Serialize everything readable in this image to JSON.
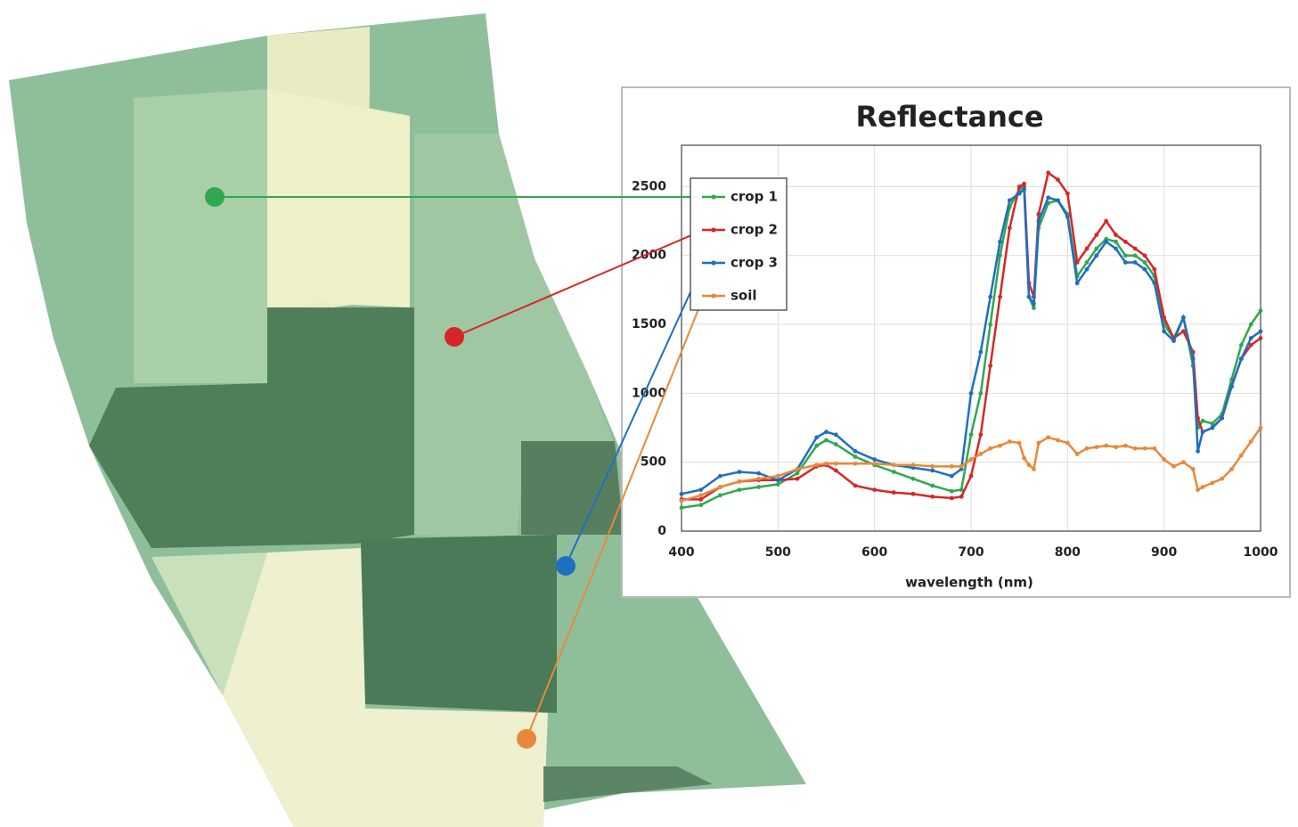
{
  "chart_data": {
    "type": "line",
    "title": "Reflectance",
    "x_label": "wavelength (nm)",
    "x": [
      400,
      420,
      440,
      460,
      480,
      500,
      520,
      540,
      550,
      560,
      580,
      600,
      620,
      640,
      660,
      680,
      690,
      700,
      710,
      720,
      730,
      740,
      750,
      755,
      760,
      765,
      770,
      780,
      790,
      800,
      810,
      820,
      830,
      840,
      850,
      860,
      870,
      880,
      890,
      900,
      910,
      920,
      930,
      935,
      940,
      950,
      960,
      970,
      980,
      990,
      1000
    ],
    "series": [
      {
        "name": "crop 1",
        "color": "#2fa84f",
        "values": [
          170,
          190,
          260,
          300,
          320,
          340,
          420,
          620,
          660,
          630,
          540,
          480,
          430,
          380,
          330,
          290,
          300,
          700,
          1000,
          1500,
          2000,
          2350,
          2480,
          2500,
          1700,
          1620,
          2200,
          2380,
          2400,
          2300,
          1850,
          1950,
          2050,
          2120,
          2100,
          2000,
          2000,
          1950,
          1850,
          1500,
          1400,
          1550,
          1200,
          750,
          800,
          780,
          850,
          1100,
          1350,
          1500,
          1600
        ]
      },
      {
        "name": "crop 2",
        "color": "#d62728",
        "values": [
          230,
          230,
          320,
          360,
          370,
          370,
          380,
          470,
          480,
          440,
          330,
          300,
          280,
          270,
          250,
          240,
          250,
          400,
          700,
          1200,
          1700,
          2200,
          2500,
          2520,
          1800,
          1700,
          2300,
          2600,
          2550,
          2450,
          1950,
          2050,
          2150,
          2250,
          2150,
          2100,
          2050,
          2000,
          1900,
          1550,
          1400,
          1450,
          1300,
          820,
          720,
          750,
          820,
          1050,
          1250,
          1350,
          1400
        ]
      },
      {
        "name": "crop 3",
        "color": "#1f6fbf",
        "values": [
          270,
          300,
          400,
          430,
          420,
          370,
          450,
          680,
          720,
          700,
          580,
          520,
          480,
          460,
          440,
          400,
          450,
          1000,
          1300,
          1700,
          2100,
          2400,
          2450,
          2480,
          1700,
          1650,
          2250,
          2420,
          2400,
          2280,
          1800,
          1900,
          2000,
          2100,
          2050,
          1950,
          1950,
          1900,
          1800,
          1450,
          1380,
          1550,
          1250,
          580,
          720,
          750,
          820,
          1050,
          1250,
          1400,
          1450
        ]
      },
      {
        "name": "soil",
        "color": "#e8893a",
        "values": [
          220,
          260,
          320,
          360,
          380,
          400,
          450,
          480,
          490,
          490,
          490,
          490,
          480,
          480,
          470,
          470,
          470,
          520,
          560,
          600,
          620,
          650,
          640,
          530,
          480,
          450,
          640,
          680,
          660,
          640,
          560,
          600,
          610,
          620,
          610,
          620,
          600,
          600,
          600,
          520,
          470,
          500,
          450,
          300,
          320,
          350,
          380,
          450,
          550,
          650,
          750
        ]
      }
    ],
    "xlim": [
      400,
      1000
    ],
    "xticks": [
      400,
      500,
      600,
      700,
      800,
      900,
      1000
    ],
    "ylim": [
      0,
      2800
    ],
    "yticks": [
      0,
      500,
      1000,
      1500,
      2000,
      2500
    ],
    "grid": true
  }
}
